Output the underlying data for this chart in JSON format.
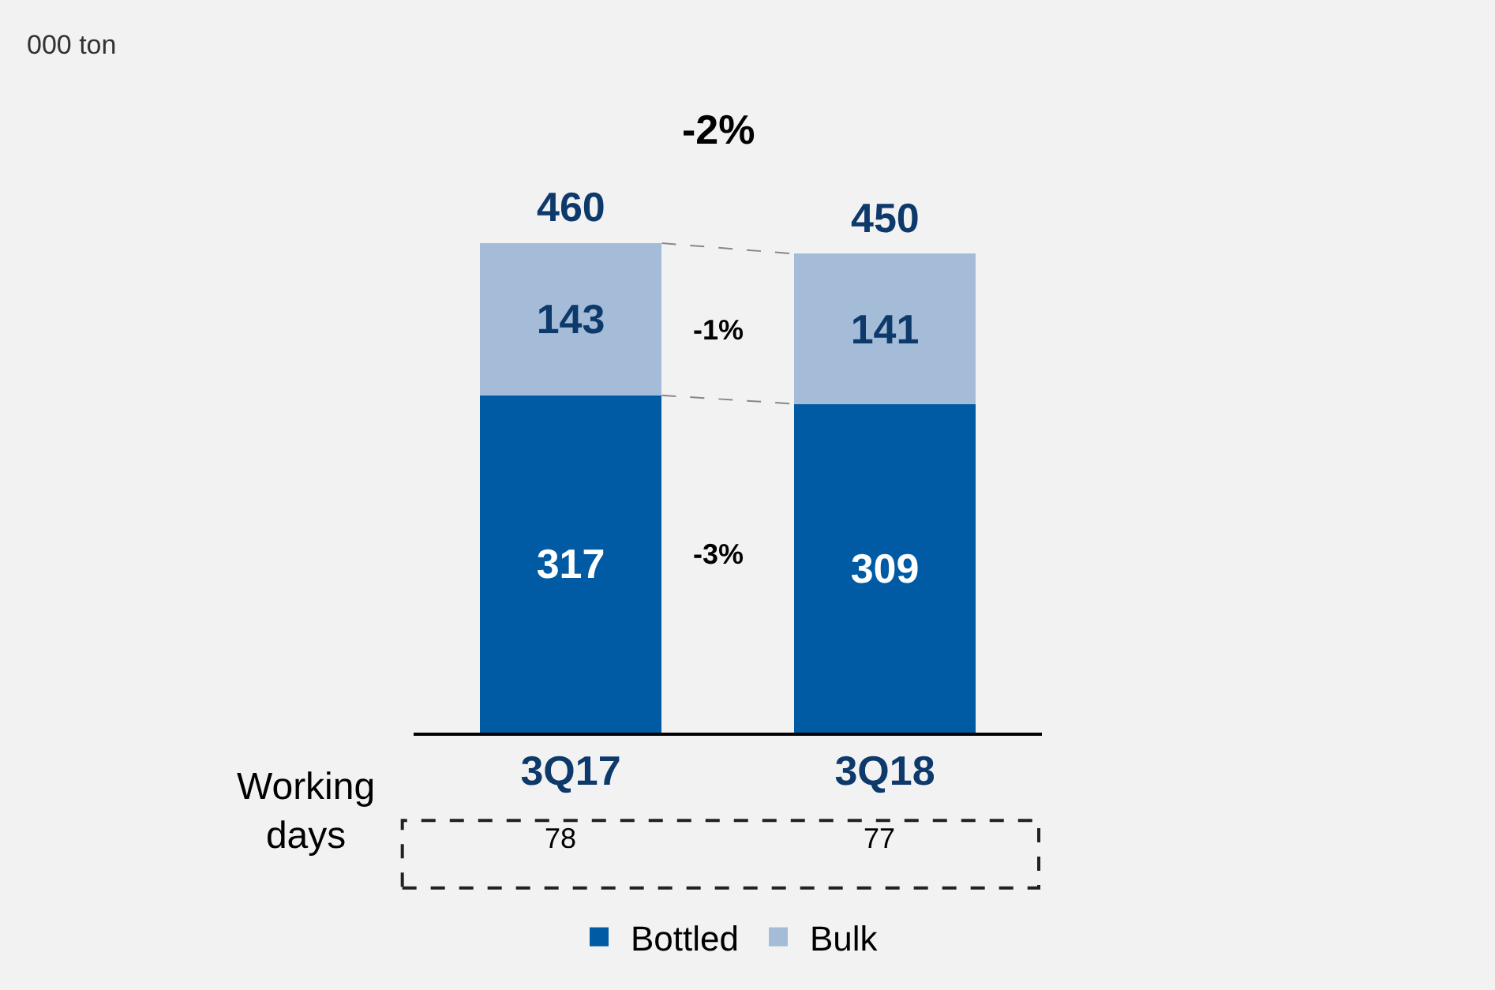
{
  "chart_data": {
    "type": "bar",
    "categories": [
      "3Q17",
      "3Q18"
    ],
    "stacked": true,
    "series": [
      {
        "name": "Bottled",
        "color": "#005ba4",
        "values": [
          317,
          309
        ]
      },
      {
        "name": "Bulk",
        "color": "#a5bcd8",
        "values": [
          143,
          141
        ]
      }
    ],
    "totals": [
      "460",
      "450"
    ],
    "data_labels": true,
    "tick_labels": "x",
    "legend": "bottom",
    "grid": false,
    "annotations": [
      "000 ton",
      "-2%",
      "-1%",
      "-3%",
      "Working days",
      "78",
      "77"
    ]
  }
}
